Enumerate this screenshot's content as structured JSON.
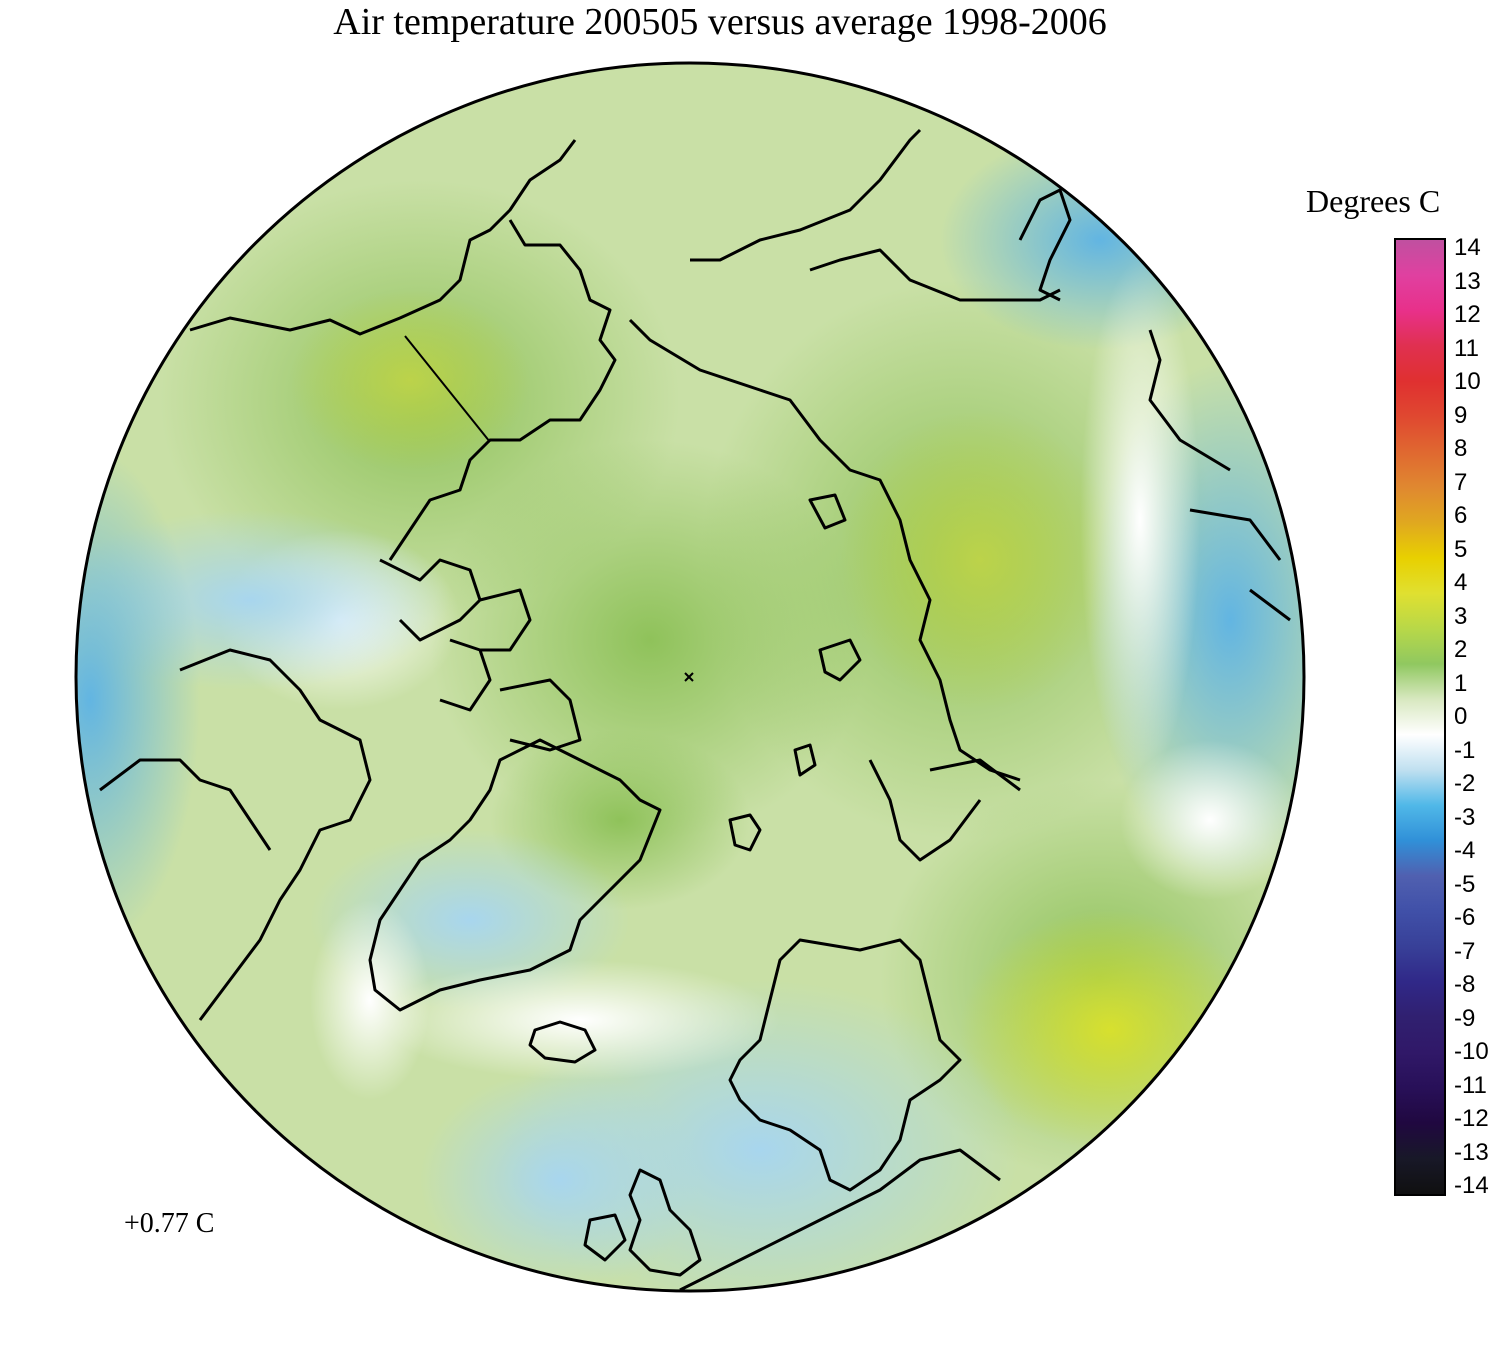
{
  "title": "Air temperature 200505 versus average 1998-2006",
  "legend": {
    "title": "Degrees C",
    "ticks": [
      "14",
      "13",
      "12",
      "11",
      "10",
      "9",
      "8",
      "7",
      "6",
      "5",
      "4",
      "3",
      "2",
      "1",
      "0",
      "-1",
      "-2",
      "-3",
      "-4",
      "-5",
      "-6",
      "-7",
      "-8",
      "-9",
      "-10",
      "-11",
      "-12",
      "-13",
      "-14"
    ],
    "stops": [
      "#c050a0",
      "#e040a0",
      "#e8308a",
      "#e03050",
      "#e03030",
      "#e04830",
      "#e06830",
      "#e08830",
      "#e0a820",
      "#e8d000",
      "#e0e030",
      "#b8d848",
      "#90c860",
      "#d8e8c0",
      "#ffffff",
      "#c0e0f0",
      "#50b8e8",
      "#3090d8",
      "#5060b0",
      "#4050a8",
      "#384098",
      "#302888",
      "#302070",
      "#301868",
      "#281058",
      "#200840",
      "#181828",
      "#101010"
    ]
  },
  "mean_anomaly": "+0.77 C",
  "colors": {
    "ocean_warm": "#9fca6e",
    "ocean_cool": "#bfe0ef",
    "coast": "#000000"
  }
}
